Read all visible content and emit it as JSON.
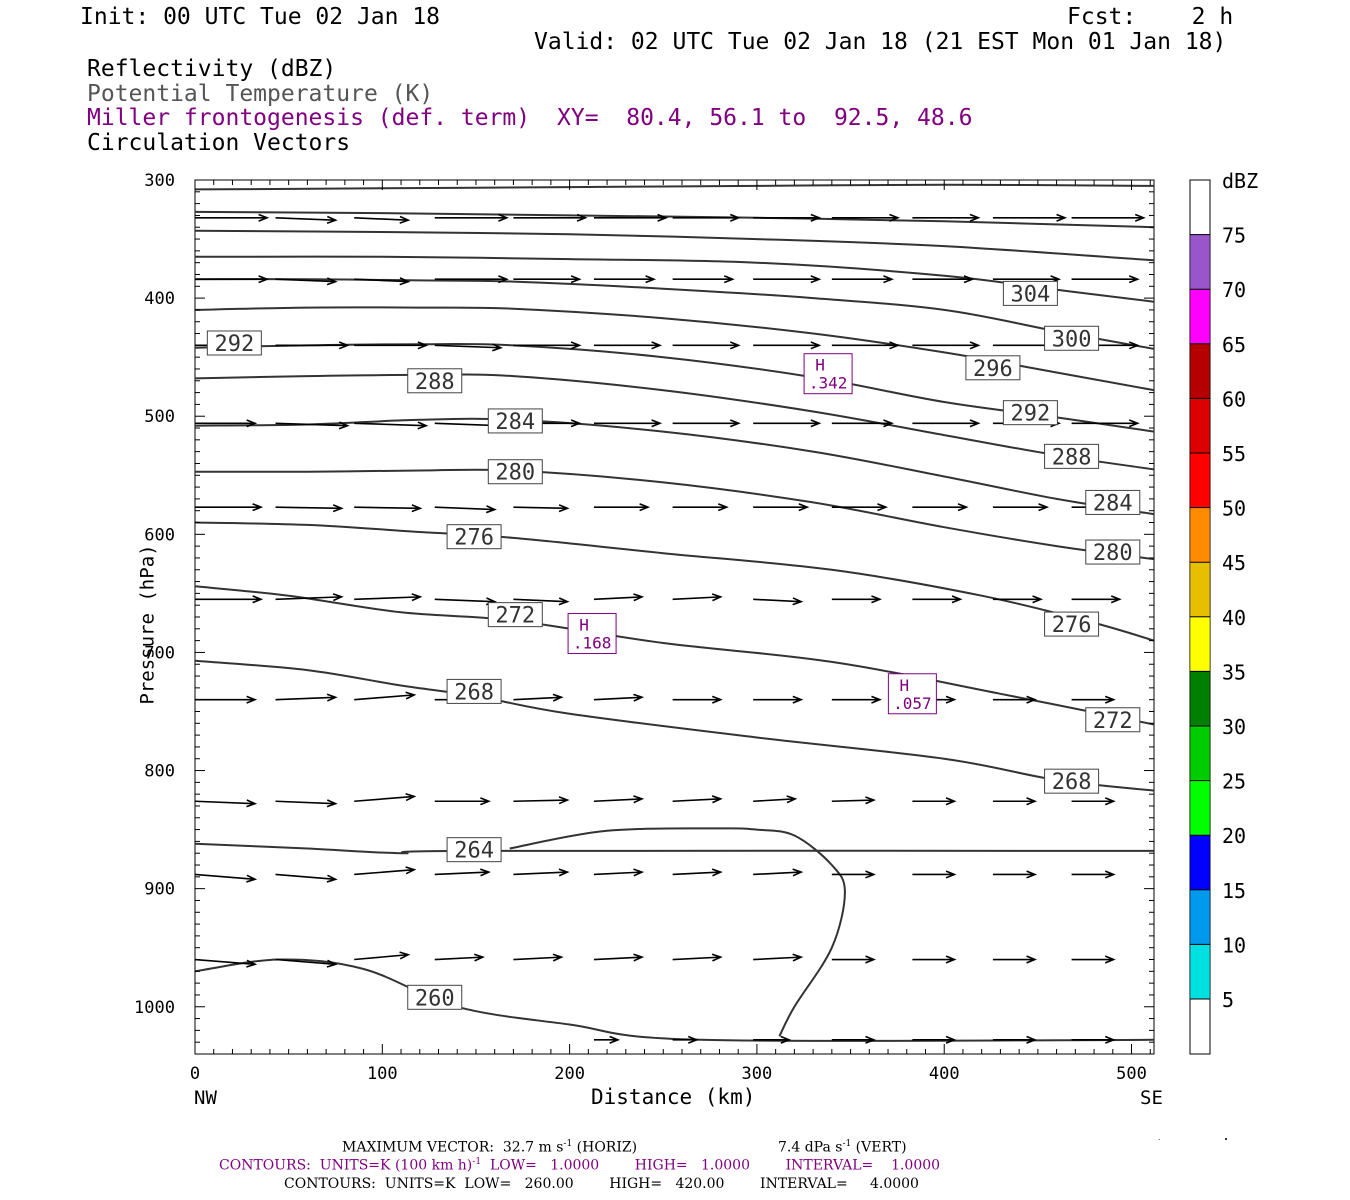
{
  "header": {
    "init": "Init: 00 UTC Tue 02 Jan 18",
    "fcst": "Fcst:    2 h",
    "valid": "Valid: 02 UTC Tue 02 Jan 18 (21 EST Mon 01 Jan 18)",
    "legend_reflectivity": "Reflectivity (dBZ)",
    "legend_theta": "Potential Temperature (K)",
    "legend_miller": "Miller frontogenesis (def. term)",
    "xy": "XY=  80.4, 56.1 to  92.5, 48.6",
    "legend_vectors": "Circulation Vectors"
  },
  "colors": {
    "contour": "#333333",
    "frontogenesis": "#800080",
    "text": "#000000"
  },
  "chart_data": {
    "type": "cross-section",
    "xlabel": "Distance (km)",
    "ylabel": "Pressure (hPa)",
    "xlim": [
      0,
      512
    ],
    "ylim": [
      1040,
      300
    ],
    "x_ticks": [
      0,
      100,
      200,
      300,
      400,
      500
    ],
    "y_ticks": [
      300,
      400,
      500,
      600,
      700,
      800,
      900,
      1000
    ],
    "left_end_label": "NW",
    "right_end_label": "SE",
    "theta_contours": [
      {
        "value": 260,
        "x": [
          0,
          45,
          90,
          140,
          200,
          270,
          512
        ],
        "p": [
          970,
          960,
          968,
          1000,
          1015,
          1028,
          1028
        ]
      },
      {
        "value": 264,
        "x": [
          0,
          60,
          110,
          150,
          512
        ],
        "p": [
          862,
          866,
          870,
          868,
          868
        ]
      },
      {
        "value": 268,
        "x": [
          0,
          60,
          110,
          150,
          200,
          300,
          400,
          460,
          512
        ],
        "p": [
          707,
          715,
          728,
          737,
          752,
          772,
          790,
          808,
          817
        ]
      },
      {
        "value": 272,
        "x": [
          0,
          50,
          110,
          170,
          250,
          340,
          430,
          512
        ],
        "p": [
          644,
          652,
          666,
          673,
          692,
          708,
          735,
          761
        ]
      },
      {
        "value": 276,
        "x": [
          0,
          60,
          120,
          170,
          250,
          340,
          420,
          480,
          512
        ],
        "p": [
          590,
          592,
          598,
          603,
          616,
          630,
          652,
          675,
          690
        ]
      },
      {
        "value": 280,
        "x": [
          0,
          60,
          120,
          170,
          250,
          330,
          400,
          460,
          512
        ],
        "p": [
          547,
          547,
          546,
          546,
          556,
          573,
          594,
          610,
          621
        ]
      },
      {
        "value": 284,
        "x": [
          0,
          60,
          120,
          170,
          250,
          330,
          400,
          460,
          512
        ],
        "p": [
          508,
          507,
          503,
          503,
          513,
          530,
          551,
          570,
          583
        ]
      },
      {
        "value": 288,
        "x": [
          0,
          60,
          120,
          170,
          250,
          330,
          400,
          460,
          512
        ],
        "p": [
          468,
          466,
          465,
          466,
          478,
          496,
          516,
          533,
          545
        ]
      },
      {
        "value": 292,
        "x": [
          0,
          60,
          120,
          170,
          250,
          330,
          400,
          460,
          512
        ],
        "p": [
          442,
          440,
          439,
          440,
          450,
          467,
          488,
          501,
          513
        ]
      },
      {
        "value": 296,
        "x": [
          0,
          60,
          120,
          170,
          250,
          330,
          400,
          460,
          512
        ],
        "p": [
          410,
          408,
          408,
          409,
          417,
          430,
          446,
          463,
          478
        ]
      },
      {
        "value": 300,
        "x": [
          0,
          60,
          120,
          170,
          250,
          330,
          400,
          460,
          512
        ],
        "p": [
          384,
          384,
          385,
          386,
          392,
          400,
          410,
          428,
          443
        ]
      },
      {
        "value": 304,
        "x": [
          0,
          100,
          200,
          300,
          400,
          460,
          512
        ],
        "p": [
          365,
          365,
          367,
          370,
          381,
          393,
          403
        ]
      },
      {
        "value": 308,
        "x": [
          0,
          100,
          200,
          300,
          400,
          512
        ],
        "p": [
          343,
          344,
          346,
          350,
          356,
          368
        ]
      },
      {
        "value": 312,
        "x": [
          0,
          100,
          200,
          300,
          400,
          512
        ],
        "p": [
          327,
          328,
          330,
          332,
          335,
          340
        ]
      },
      {
        "value": 316,
        "x": [
          0,
          100,
          200,
          300,
          400,
          512
        ],
        "p": [
          308,
          307,
          306,
          305,
          304,
          305
        ]
      }
    ],
    "contour_labels": [
      {
        "text": "304",
        "x": 446,
        "p": 396
      },
      {
        "text": "300",
        "x": 468,
        "p": 434
      },
      {
        "text": "296",
        "x": 426,
        "p": 459
      },
      {
        "text": "292",
        "x": 446,
        "p": 497
      },
      {
        "text": "292",
        "x": 21,
        "p": 438
      },
      {
        "text": "288",
        "x": 128,
        "p": 470
      },
      {
        "text": "288",
        "x": 468,
        "p": 534
      },
      {
        "text": "284",
        "x": 171,
        "p": 504
      },
      {
        "text": "284",
        "x": 490,
        "p": 573
      },
      {
        "text": "280",
        "x": 171,
        "p": 547
      },
      {
        "text": "280",
        "x": 490,
        "p": 615
      },
      {
        "text": "276",
        "x": 149,
        "p": 602
      },
      {
        "text": "276",
        "x": 468,
        "p": 676
      },
      {
        "text": "272",
        "x": 171,
        "p": 668
      },
      {
        "text": "272",
        "x": 490,
        "p": 757
      },
      {
        "text": "268",
        "x": 149,
        "p": 733
      },
      {
        "text": "268",
        "x": 468,
        "p": 809
      },
      {
        "text": "264",
        "x": 149,
        "p": 867
      },
      {
        "text": "260",
        "x": 128,
        "p": 992
      }
    ],
    "frontogenesis_contour": {
      "x": [
        168,
        220,
        280,
        300,
        320,
        340,
        347,
        340,
        320,
        312
      ],
      "p": [
        866,
        851,
        849,
        850,
        855,
        880,
        903,
        950,
        1000,
        1025
      ]
    },
    "highs": [
      {
        "label": "H",
        "value": ".342",
        "x": 338,
        "p": 464
      },
      {
        "label": "H",
        "value": ".168",
        "x": 212,
        "p": 684
      },
      {
        "label": "H",
        "value": ".057",
        "x": 383,
        "p": 735
      }
    ],
    "vector_columns_x": [
      0,
      43,
      85,
      128,
      170,
      213,
      255,
      298,
      340,
      383,
      426,
      468
    ],
    "vectors": [
      {
        "p": 332,
        "u": [
          0.6,
          0.5,
          0.45,
          0.6,
          0.6,
          0.6,
          0.55,
          0.55,
          0.55,
          0.55,
          0.6,
          0.6
        ],
        "w": [
          0,
          0.02,
          0.02,
          0,
          0,
          0,
          0,
          0,
          0,
          0,
          0,
          0
        ]
      },
      {
        "p": 384,
        "u": [
          0.6,
          0.5,
          0.45,
          0.6,
          0.55,
          0.5,
          0.5,
          0.55,
          0.5,
          0.5,
          0.55,
          0.55
        ],
        "w": [
          0,
          0.02,
          0.02,
          0,
          0,
          0,
          0,
          0,
          0,
          0,
          0,
          0
        ]
      },
      {
        "p": 440,
        "u": [
          0.5,
          0.6,
          0.6,
          0.55,
          0.55,
          0.55,
          0.55,
          0.55,
          0.55,
          0.55,
          0.55,
          0.55
        ],
        "w": [
          0,
          0,
          0,
          0.02,
          0,
          0,
          0,
          0,
          0,
          0,
          0,
          0
        ]
      },
      {
        "p": 506,
        "u": [
          0.5,
          0.6,
          0.6,
          0.55,
          0.55,
          0.55,
          0.55,
          0.55,
          0.5,
          0.55,
          0.55,
          0.55
        ],
        "w": [
          0,
          0.02,
          0.02,
          0.02,
          0,
          0,
          0,
          0,
          0,
          0,
          0,
          0
        ]
      },
      {
        "p": 577,
        "u": [
          0.55,
          0.55,
          0.55,
          0.5,
          0.45,
          0.45,
          0.45,
          0.45,
          0.45,
          0.45,
          0.45,
          0.45
        ],
        "w": [
          0,
          0.01,
          0.01,
          0.02,
          0.01,
          0,
          0,
          0,
          0,
          0,
          0,
          0
        ]
      },
      {
        "p": 655,
        "u": [
          0.55,
          0.55,
          0.55,
          0.5,
          0.45,
          0.4,
          0.4,
          0.4,
          0.4,
          0.4,
          0.4,
          0.4
        ],
        "w": [
          0,
          -0.02,
          -0.02,
          0.02,
          0.02,
          -0.02,
          -0.02,
          0.02,
          0,
          0,
          0,
          0
        ]
      },
      {
        "p": 740,
        "u": [
          0.5,
          0.5,
          0.5,
          0.4,
          0.4,
          0.4,
          0.4,
          0.4,
          0.4,
          0.35,
          0.35,
          0.35
        ],
        "w": [
          0,
          -0.02,
          -0.04,
          0,
          -0.02,
          -0.02,
          0,
          0,
          0,
          0,
          0,
          0
        ]
      },
      {
        "p": 826,
        "u": [
          0.5,
          0.5,
          0.5,
          0.45,
          0.45,
          0.4,
          0.4,
          0.35,
          0.35,
          0.35,
          0.35,
          0.35
        ],
        "w": [
          0.02,
          0.02,
          -0.04,
          0,
          -0.01,
          -0.02,
          -0.02,
          -0.02,
          -0.01,
          0,
          0,
          0
        ]
      },
      {
        "p": 888,
        "u": [
          0.5,
          0.5,
          0.5,
          0.45,
          0.45,
          0.4,
          0.4,
          0.4,
          0.35,
          0.35,
          0.35,
          0.35
        ],
        "w": [
          0.04,
          0.04,
          -0.04,
          -0.02,
          -0.02,
          -0.02,
          -0.02,
          -0.02,
          0,
          0,
          0,
          0
        ]
      },
      {
        "p": 960,
        "u": [
          0.5,
          0.5,
          0.45,
          0.4,
          0.4,
          0.4,
          0.4,
          0.4,
          0.35,
          0.35,
          0.35,
          0.35
        ],
        "w": [
          0.04,
          0.04,
          -0.04,
          -0.02,
          -0.02,
          -0.02,
          -0.02,
          -0.02,
          0,
          0,
          0,
          0
        ]
      },
      {
        "p": 1028,
        "u": [
          0,
          0,
          0,
          0,
          0,
          0.2,
          0.2,
          0.3,
          0.35,
          0.35,
          0.35,
          0.35
        ],
        "w": [
          0,
          0,
          0,
          0,
          0,
          0,
          0,
          0,
          0,
          0,
          0,
          0
        ]
      }
    ],
    "colorbar": {
      "title": "dBZ",
      "labels": [
        "5",
        "10",
        "15",
        "20",
        "25",
        "30",
        "35",
        "40",
        "45",
        "50",
        "55",
        "60",
        "65",
        "70",
        "75"
      ],
      "colors": [
        "#00e0e0",
        "#0099ee",
        "#0000ff",
        "#00ff00",
        "#00cc00",
        "#008000",
        "#ffff00",
        "#e6c000",
        "#ff8c00",
        "#ff0000",
        "#dd0000",
        "#b40000",
        "#ff00ff",
        "#9955cc"
      ]
    }
  },
  "footer": {
    "max_vector_prefix": "MAXIMUM VECTOR:  32.7 m s",
    "max_vector_exp": "-1",
    "max_vector_horiz": " (HORIZ)",
    "max_vector_vert_prefix": "7.4 dPa s",
    "max_vector_vert_exp": "-1",
    "max_vector_vert_suffix": " (VERT)",
    "contours_purple_a": "CONTOURS:  UNITS=K (100 km h)",
    "contours_purple_exp": "-1",
    "contours_purple_b": "  LOW=   1.0000        HIGH=   1.0000        INTERVAL=    1.0000",
    "contours_black": "CONTOURS:  UNITS=K  LOW=   260.00        HIGH=   420.00        INTERVAL=     4.0000"
  }
}
